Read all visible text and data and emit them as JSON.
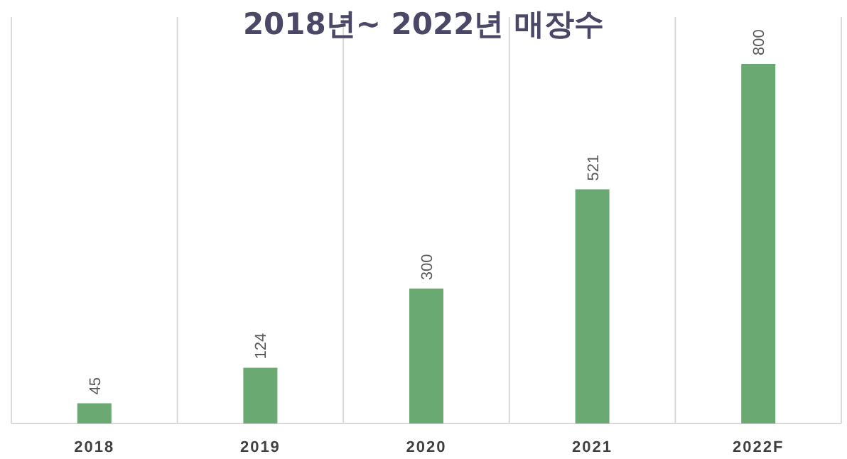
{
  "chart_data": {
    "type": "bar",
    "title": "2018년~ 2022년 매장수",
    "categories": [
      "2018",
      "2019",
      "2020",
      "2021",
      "2022F"
    ],
    "values": [
      45,
      124,
      300,
      521,
      800
    ],
    "color": "#6aaa72",
    "data_labels": true,
    "relative": false,
    "grid": "x"
  }
}
